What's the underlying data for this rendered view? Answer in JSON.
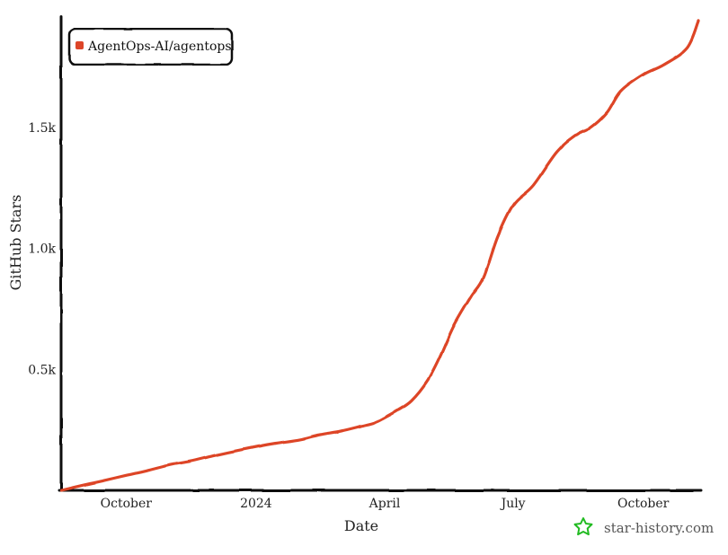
{
  "chart_data": {
    "type": "line",
    "xlabel": "Date",
    "ylabel": "GitHub Stars",
    "x_ticks": [
      {
        "label": "October",
        "date": "2023-10-01"
      },
      {
        "label": "2024",
        "date": "2024-01-01"
      },
      {
        "label": "April",
        "date": "2024-04-01"
      },
      {
        "label": "July",
        "date": "2024-07-01"
      },
      {
        "label": "October",
        "date": "2024-10-01"
      }
    ],
    "y_ticks": [
      {
        "label": "0.5k",
        "value": 500
      },
      {
        "label": "1.0k",
        "value": 1000
      },
      {
        "label": "1.5k",
        "value": 1500
      }
    ],
    "xlim": [
      "2023-08-16",
      "2024-11-09"
    ],
    "ylim": [
      0,
      1960
    ],
    "grid": false,
    "legend_position": "top-left",
    "series": [
      {
        "name": "AgentOps-AI/agentops",
        "color": "#dd4528",
        "points": [
          [
            "2023-08-16",
            0
          ],
          [
            "2023-09-01",
            22
          ],
          [
            "2023-09-15",
            40
          ],
          [
            "2023-10-01",
            62
          ],
          [
            "2023-10-15",
            80
          ],
          [
            "2023-11-01",
            105
          ],
          [
            "2023-11-15",
            120
          ],
          [
            "2023-12-01",
            142
          ],
          [
            "2023-12-15",
            160
          ],
          [
            "2024-01-01",
            180
          ],
          [
            "2024-01-15",
            195
          ],
          [
            "2024-02-01",
            210
          ],
          [
            "2024-02-15",
            230
          ],
          [
            "2024-03-01",
            245
          ],
          [
            "2024-03-15",
            265
          ],
          [
            "2024-03-25",
            280
          ],
          [
            "2024-04-01",
            300
          ],
          [
            "2024-04-10",
            330
          ],
          [
            "2024-04-20",
            370
          ],
          [
            "2024-05-01",
            450
          ],
          [
            "2024-05-10",
            550
          ],
          [
            "2024-05-20",
            680
          ],
          [
            "2024-06-01",
            800
          ],
          [
            "2024-06-10",
            880
          ],
          [
            "2024-06-20",
            1050
          ],
          [
            "2024-07-01",
            1180
          ],
          [
            "2024-07-15",
            1260
          ],
          [
            "2024-08-01",
            1400
          ],
          [
            "2024-08-15",
            1470
          ],
          [
            "2024-08-25",
            1500
          ],
          [
            "2024-09-05",
            1560
          ],
          [
            "2024-09-15",
            1650
          ],
          [
            "2024-10-01",
            1720
          ],
          [
            "2024-10-15",
            1760
          ],
          [
            "2024-11-01",
            1830
          ],
          [
            "2024-11-09",
            1940
          ]
        ]
      }
    ]
  },
  "watermark": {
    "text": "star-history.com",
    "icon": "star-history-logo-icon",
    "color": "#22bb22"
  }
}
